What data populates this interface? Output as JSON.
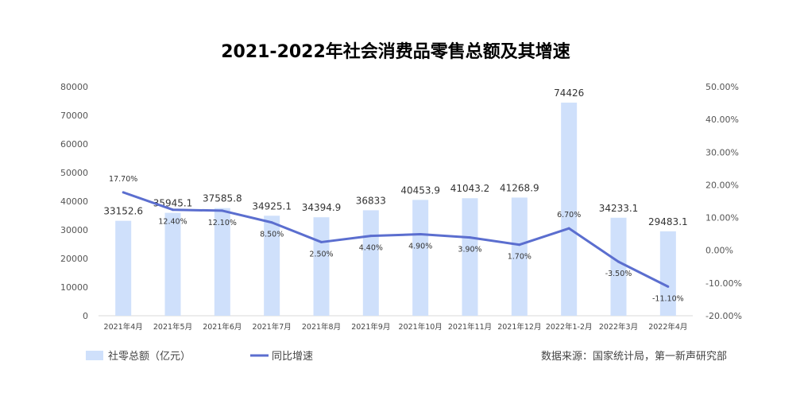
{
  "chart_data": {
    "type": "bar",
    "title": "2021-2022年社会消费品零售总额及其增速",
    "categories": [
      "2021年4月",
      "2021年5月",
      "2021年6月",
      "2021年7月",
      "2021年8月",
      "2021年9月",
      "2021年10月",
      "2021年11月",
      "2021年12月",
      "2022年1-2月",
      "2022年3月",
      "2022年4月"
    ],
    "series": [
      {
        "name": "社零总额（亿元）",
        "type": "bar",
        "axis": "left",
        "color": "#cfe0fb",
        "values": [
          33152.6,
          35945.1,
          37585.8,
          34925.1,
          34394.9,
          36833,
          40453.9,
          41043.2,
          41268.9,
          74426,
          34233.1,
          29483.1
        ],
        "labels": [
          "33152.6",
          "35945.1",
          "37585.8",
          "34925.1",
          "34394.9",
          "36833",
          "40453.9",
          "41043.2",
          "41268.9",
          "74426",
          "34233.1",
          "29483.1"
        ]
      },
      {
        "name": "同比增速",
        "type": "line",
        "axis": "right",
        "color": "#5b6ecf",
        "values": [
          17.7,
          12.4,
          12.1,
          8.5,
          2.5,
          4.4,
          4.9,
          3.9,
          1.7,
          6.7,
          -3.5,
          -11.1
        ],
        "labels": [
          "17.70%",
          "12.40%",
          "12.10%",
          "8.50%",
          "2.50%",
          "4.40%",
          "4.90%",
          "3.90%",
          "1.70%",
          "6.70%",
          "-3.50%",
          "-11.10%"
        ]
      }
    ],
    "y_left": {
      "lim": [
        0,
        80000
      ],
      "ticks": [
        "0",
        "10000",
        "20000",
        "30000",
        "40000",
        "50000",
        "60000",
        "70000",
        "80000"
      ]
    },
    "y_right": {
      "lim": [
        -20,
        50
      ],
      "ticks": [
        "-20.00%",
        "-10.00%",
        "0.00%",
        "10.00%",
        "20.00%",
        "30.00%",
        "40.00%",
        "50.00%"
      ]
    },
    "grid": false,
    "legend": "bottom-left",
    "source": "数据来源：国家统计局，第一新声研究部"
  }
}
